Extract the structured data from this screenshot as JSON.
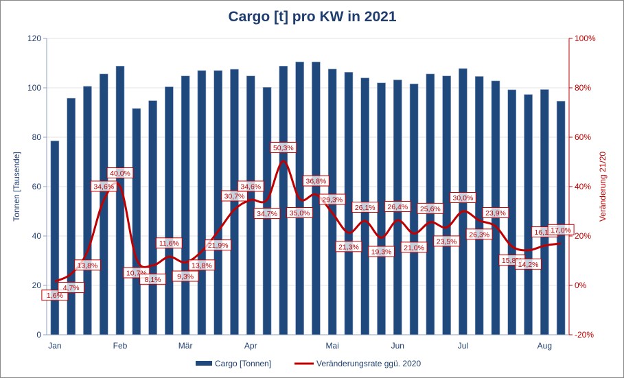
{
  "chart_data": {
    "type": "bar+line",
    "title": "Cargo [t] pro KW in 2021",
    "ylabel_left": "Tonnen [Tausende]",
    "ylabel_right": "Veränderung 21/20",
    "ylim_left": [
      0,
      120
    ],
    "yticks_left": [
      "0",
      "20",
      "40",
      "60",
      "80",
      "100",
      "120"
    ],
    "ylim_right": [
      -20,
      100
    ],
    "yticks_right": [
      "-20%",
      "0%",
      "20%",
      "40%",
      "60%",
      "80%",
      "100%"
    ],
    "grid": true,
    "legend_position": "bottom",
    "month_labels": [
      {
        "label": "Jan",
        "index": 0
      },
      {
        "label": "Feb",
        "index": 4
      },
      {
        "label": "Mär",
        "index": 8
      },
      {
        "label": "Apr",
        "index": 12
      },
      {
        "label": "Mai",
        "index": 17
      },
      {
        "label": "Jun",
        "index": 21
      },
      {
        "label": "Jul",
        "index": 25
      },
      {
        "label": "Aug",
        "index": 30
      }
    ],
    "series": [
      {
        "name": "Cargo [Tonnen]",
        "type": "bar",
        "color": "#1F497D",
        "values": [
          78.5,
          95.8,
          100.6,
          105.6,
          108.8,
          91.6,
          94.8,
          100.4,
          104.8,
          107.0,
          107.0,
          107.5,
          104.8,
          100.2,
          108.8,
          110.5,
          110.5,
          107.6,
          106.3,
          104.0,
          102.0,
          103.2,
          101.6,
          105.6,
          104.8,
          107.8,
          104.6,
          102.8,
          99.2,
          97.3,
          99.3,
          94.6
        ]
      },
      {
        "name": "Veränderungsrate ggü. 2020",
        "type": "line",
        "color": "#C00000",
        "values": [
          1.6,
          4.7,
          13.8,
          34.6,
          40.0,
          10.7,
          8.1,
          11.6,
          9.3,
          13.8,
          21.9,
          30.7,
          34.6,
          34.7,
          50.3,
          35.0,
          36.8,
          29.3,
          21.3,
          26.1,
          19.3,
          26.4,
          21.0,
          25.6,
          23.5,
          30.0,
          26.3,
          23.9,
          15.8,
          14.2,
          16.1,
          17.0
        ],
        "data_labels": [
          "1,6%",
          "4,7%",
          "13,8%",
          "34,6%",
          "40,0%",
          "10,7%",
          "8,1%",
          "11,6%",
          "9,3%",
          "13,8%",
          "21,9%",
          "30,7%",
          "34,6%",
          "34,7%",
          "50,3%",
          "35,0%",
          "36,8%",
          "29,3%",
          "21,3%",
          "26,1%",
          "19,3%",
          "26,4%",
          "21,0%",
          "25,6%",
          "23,5%",
          "30,0%",
          "26,3%",
          "23,9%",
          "15,8%",
          "14,2%",
          "16,1%",
          "17,0%"
        ]
      }
    ]
  }
}
